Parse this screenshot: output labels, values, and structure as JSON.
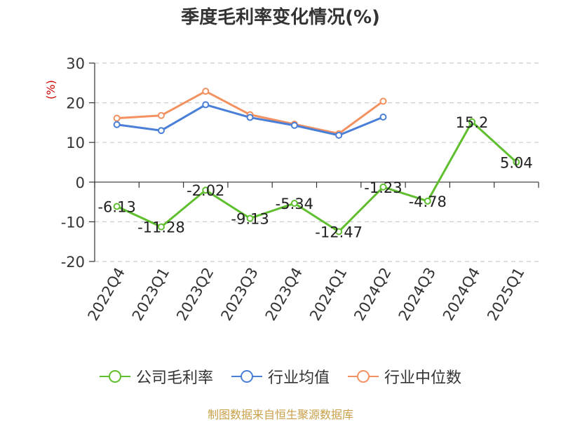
{
  "chart_data": {
    "type": "line",
    "title": "季度毛利率变化情况(%)",
    "ylabel": "(%)",
    "ylim": [
      -20,
      30
    ],
    "yticks": [
      -20,
      -10,
      0,
      10,
      20,
      30
    ],
    "grid": true,
    "legend_position": "bottom",
    "categories": [
      "2022Q4",
      "2023Q1",
      "2023Q2",
      "2023Q3",
      "2023Q4",
      "2024Q1",
      "2024Q2",
      "2024Q3",
      "2024Q4",
      "2025Q1"
    ],
    "series": [
      {
        "name": "公司毛利率",
        "color": "#5fbf2e",
        "labeled": true,
        "values": [
          -6.13,
          -11.28,
          -2.02,
          -9.13,
          -5.34,
          -12.47,
          -1.23,
          -4.78,
          15.2,
          5.04
        ],
        "labels": [
          "-6.13",
          "-11.28",
          "-2.02",
          "-9.13",
          "-5.34",
          "-12.47",
          "-1.23",
          "-4.78",
          "15.2",
          "5.04"
        ]
      },
      {
        "name": "行业均值",
        "color": "#4a7fd8",
        "labeled": false,
        "values": [
          14.5,
          13.0,
          19.5,
          16.3,
          14.3,
          11.8,
          16.4,
          null,
          null,
          null
        ]
      },
      {
        "name": "行业中位数",
        "color": "#f39160",
        "labeled": false,
        "values": [
          16.1,
          16.8,
          22.9,
          17.0,
          14.6,
          12.2,
          20.4,
          null,
          null,
          null
        ]
      }
    ]
  },
  "footer": {
    "source": "制图数据来自恒生聚源数据库"
  }
}
